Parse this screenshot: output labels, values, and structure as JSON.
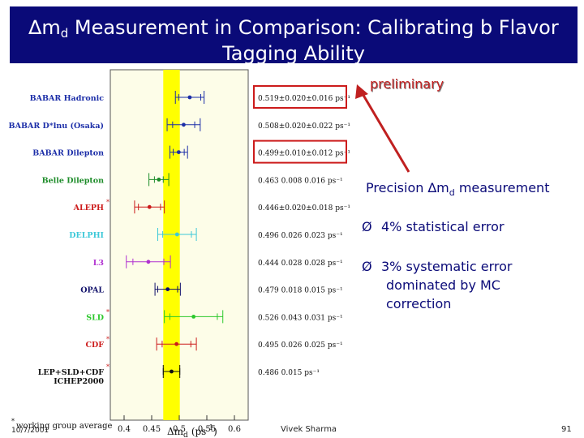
{
  "title": {
    "delta": "∆",
    "m": "m",
    "d": "d",
    "line1_rest": " Measurement in Comparison: Calibrating b Flavor",
    "line2": "Tagging Ability"
  },
  "plot": {
    "rows": [
      {
        "label": "BABAR Hadronic",
        "value_text": "0.519±0.020±0.016 ps⁻¹",
        "center": 0.519,
        "stat": 0.02,
        "total": 0.026,
        "color": "#1c2ea8",
        "boxed": true
      },
      {
        "label": "BABAR D*lnu (Osaka)",
        "value_text": "0.508±0.020±0.022 ps⁻¹",
        "center": 0.508,
        "stat": 0.02,
        "total": 0.03,
        "color": "#1c2ea8",
        "boxed": false
      },
      {
        "label": "BABAR Dilepton",
        "value_text": "0.499±0.010±0.012 ps⁻¹",
        "center": 0.499,
        "stat": 0.01,
        "total": 0.016,
        "color": "#1c2ea8",
        "boxed": true
      },
      {
        "label": "Belle Dilepton",
        "value_text": "0.463 0.008 0.016 ps⁻¹",
        "center": 0.463,
        "stat": 0.008,
        "total": 0.018,
        "color": "#1e8c2a",
        "boxed": false
      },
      {
        "label": "ALEPH",
        "value_text": "0.446±0.020±0.018 ps⁻¹",
        "center": 0.446,
        "stat": 0.02,
        "total": 0.027,
        "color": "#cc1b1b",
        "boxed": false,
        "star": true
      },
      {
        "label": "DELPHI",
        "value_text": "0.496 0.026 0.023 ps⁻¹",
        "center": 0.496,
        "stat": 0.026,
        "total": 0.035,
        "color": "#3cc8d8",
        "boxed": false
      },
      {
        "label": "L3",
        "value_text": "0.444 0.028 0.028 ps⁻¹",
        "center": 0.444,
        "stat": 0.028,
        "total": 0.04,
        "color": "#b030d0",
        "boxed": false
      },
      {
        "label": "OPAL",
        "value_text": "0.479 0.018 0.015 ps⁻¹",
        "center": 0.479,
        "stat": 0.018,
        "total": 0.023,
        "color": "#10106a",
        "boxed": false
      },
      {
        "label": "SLD",
        "value_text": "0.526 0.043 0.031 ps⁻¹",
        "center": 0.526,
        "stat": 0.043,
        "total": 0.053,
        "color": "#2cc82c",
        "boxed": false,
        "star": true
      },
      {
        "label": "CDF",
        "value_text": "0.495 0.026 0.025 ps⁻¹",
        "center": 0.495,
        "stat": 0.026,
        "total": 0.036,
        "color": "#cc1b1b",
        "boxed": false,
        "star": true
      },
      {
        "label": "LEP+SLD+CDF",
        "label2": "ICHEP2000",
        "value_text": "0.486 0.015 ps⁻¹",
        "center": 0.486,
        "stat": 0.015,
        "total": 0.015,
        "color": "#101010",
        "boxed": false,
        "star": true
      }
    ],
    "x_ticks": [
      "0.4",
      "0.45",
      "0.5",
      "0.55",
      "0.6"
    ],
    "x_tick_values": [
      0.4,
      0.45,
      0.5,
      0.55,
      0.6
    ],
    "x_min": 0.375,
    "x_max": 0.625,
    "xlabel": "Δm",
    "xlabel_sub": "d",
    "xlabel_unit": "(ps",
    "xlabel_exp": "-1",
    "xlabel_close": ")",
    "band": [
      0.471,
      0.501
    ],
    "footnote_star": "*",
    "footnote": "working group average",
    "colors": {
      "panel": "#fdfde8",
      "band": "#ffff00",
      "box": "#cc1b1b"
    }
  },
  "annotation": {
    "label": "preliminary"
  },
  "right": {
    "precision_prefix": "Precision ∆m",
    "precision_sub": "d",
    "precision_suffix": " measurement",
    "bullet_marker": "Ø",
    "bullet1": "4% statistical error",
    "bullet2_line1": "3% systematic error",
    "bullet2_line2": "dominated by MC",
    "bullet2_line3": "correction"
  },
  "footer": {
    "author": "Vivek Sharma",
    "page": "91",
    "date": "10/7/2001"
  }
}
